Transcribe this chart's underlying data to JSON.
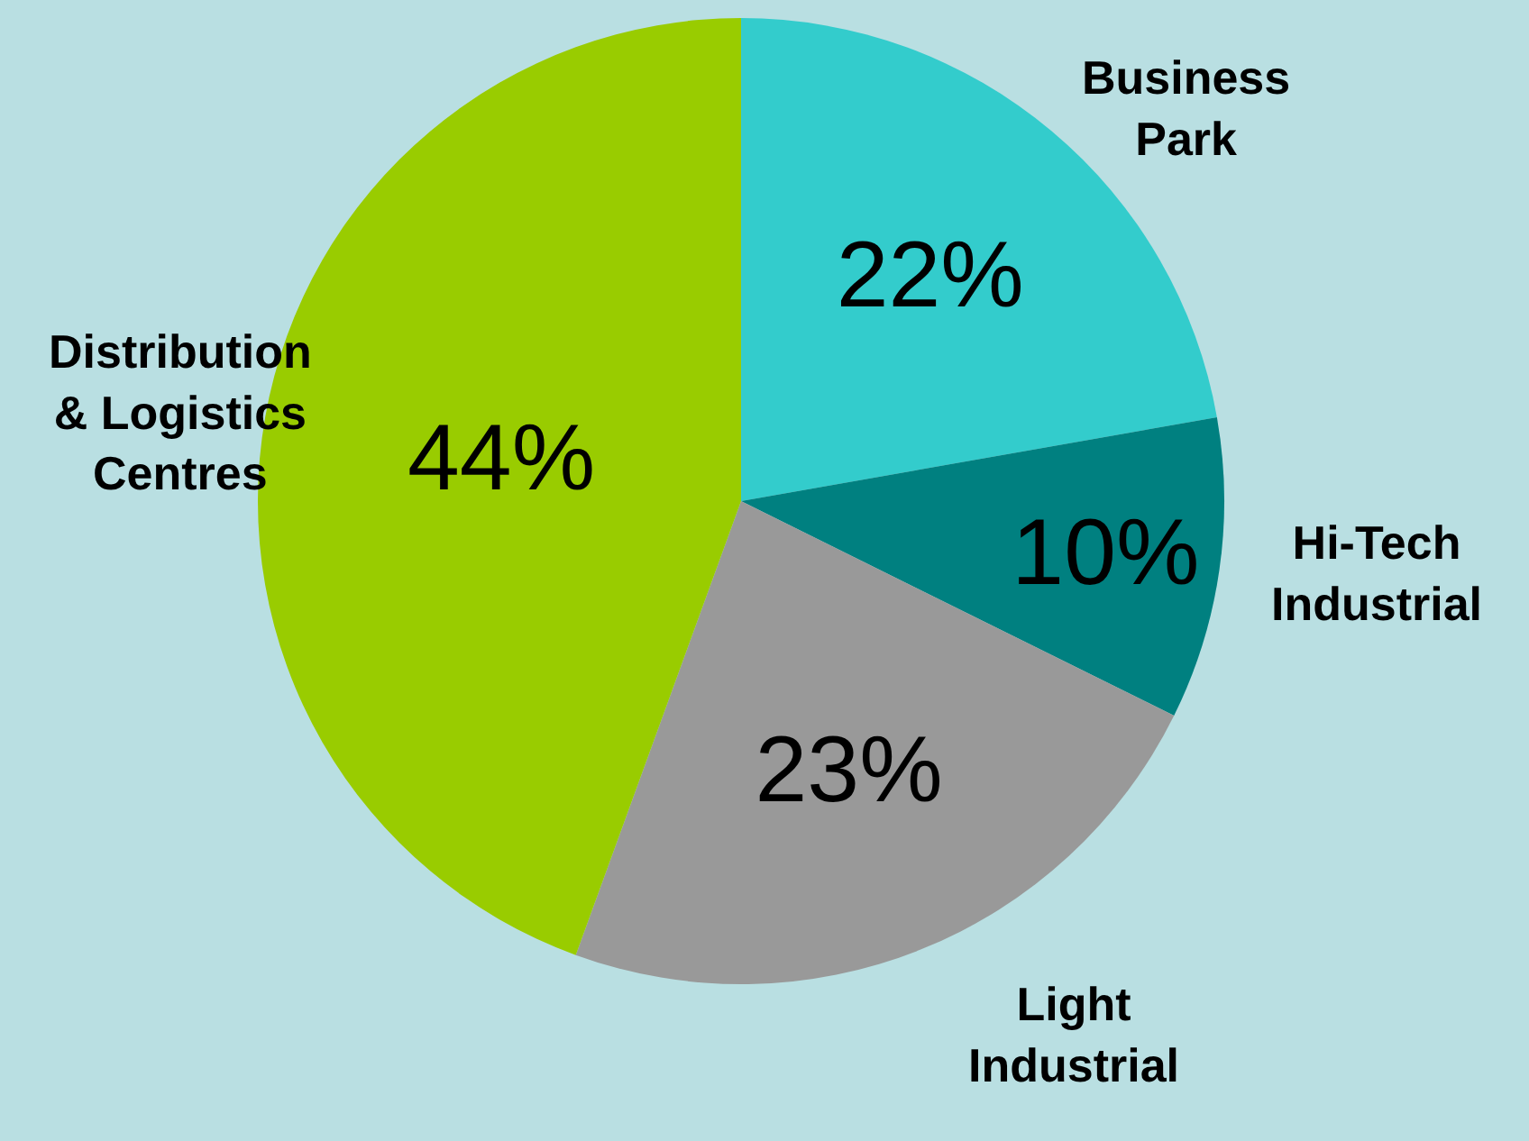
{
  "chart_data": {
    "type": "pie",
    "categories": [
      "Business Park",
      "Hi-Tech Industrial",
      "Light Industrial",
      "Distribution & Logistics Centres"
    ],
    "values": [
      22,
      10,
      23,
      44
    ],
    "colors": [
      "#33cccc",
      "#008080",
      "#999999",
      "#99cc00"
    ],
    "value_labels": [
      "22%",
      "10%",
      "23%",
      "44%"
    ],
    "legend": false
  }
}
